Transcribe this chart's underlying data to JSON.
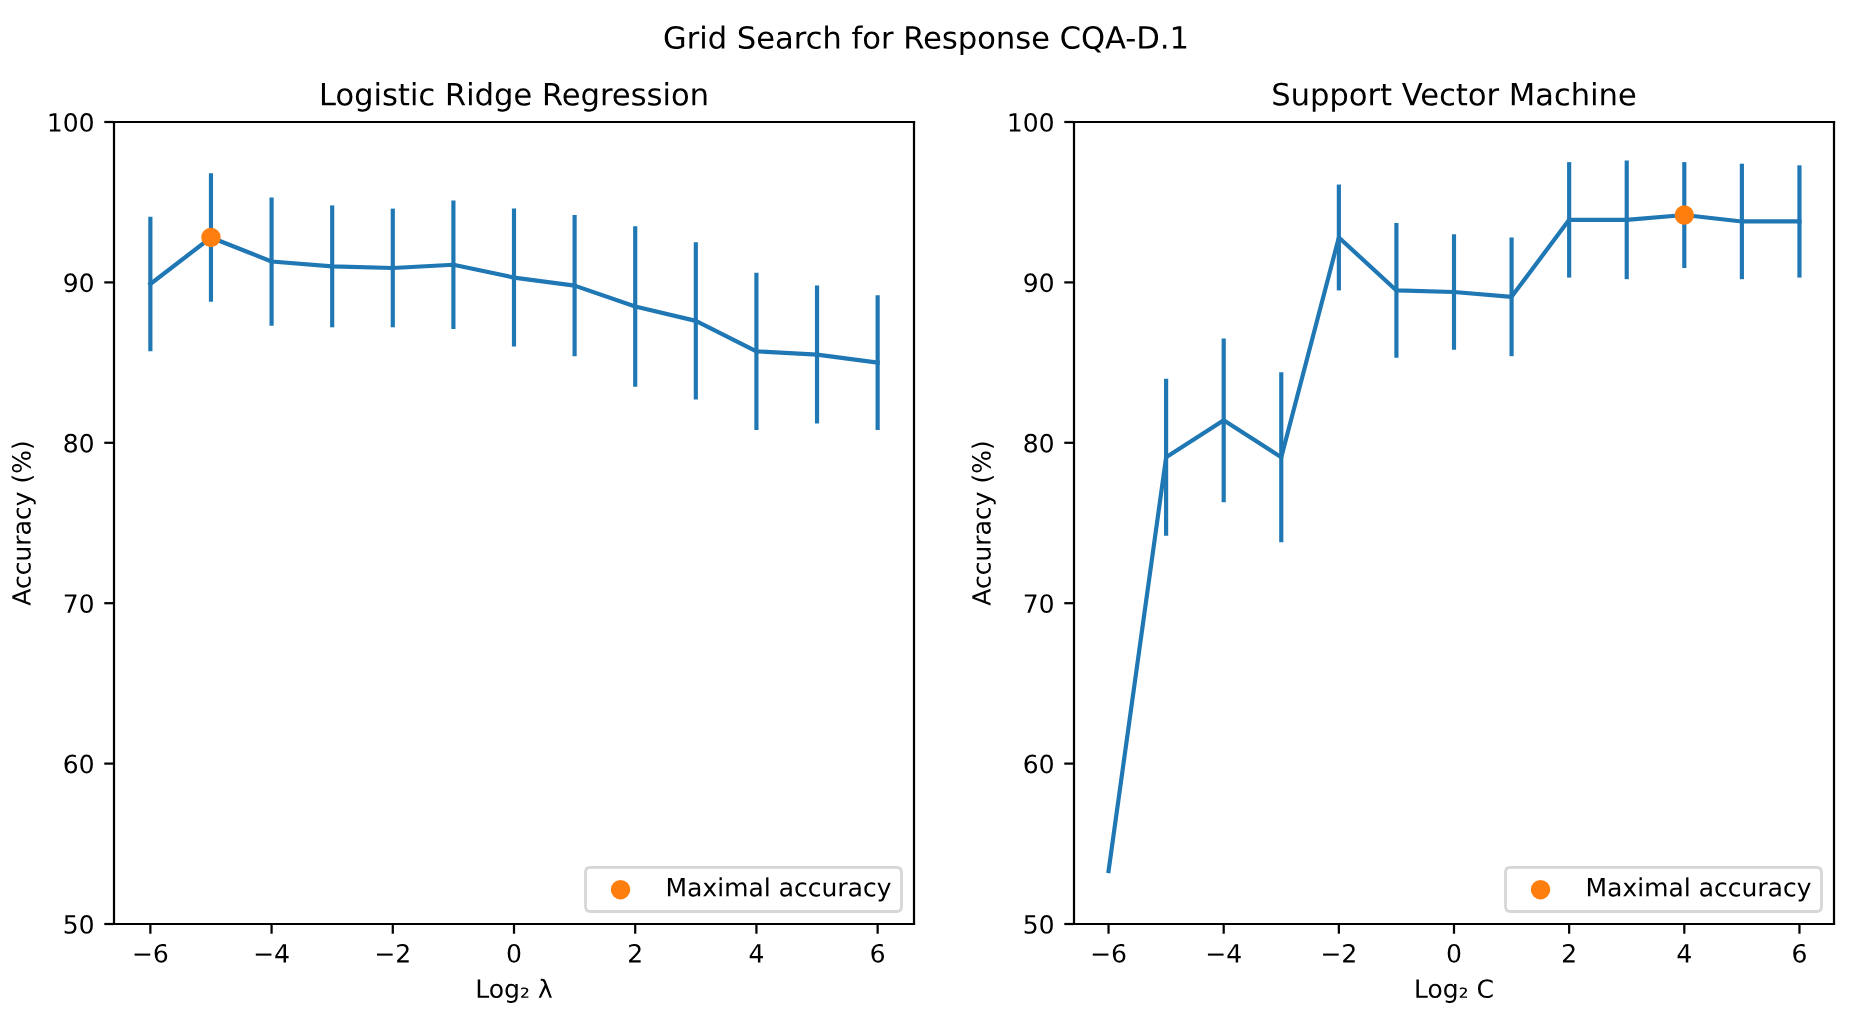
{
  "chart_data": [
    {
      "type": "line",
      "title": "Logistic Ridge Regression",
      "annotations": [
        "Grid Search for Response CQA-D.1"
      ],
      "xlabel": "Log₂ λ",
      "ylabel": "Accuracy (%)",
      "xlim": [
        -6.6,
        6.6
      ],
      "xticks": [
        {
          "value": -6,
          "label": "−6"
        },
        {
          "value": -4,
          "label": "−4"
        },
        {
          "value": -2,
          "label": "−2"
        },
        0,
        2,
        4,
        6
      ],
      "ylim": [
        50,
        100
      ],
      "yticks": [
        50,
        60,
        70,
        80,
        90,
        100
      ],
      "grid": false,
      "legend": "bottom right",
      "series": [
        {
          "color": "#1f77b4",
          "x": [
            -6,
            -5,
            -4,
            -3,
            -2,
            -1,
            0,
            1,
            2,
            3,
            4,
            5,
            6
          ],
          "values": [
            89.9,
            92.8,
            91.3,
            91.0,
            90.9,
            91.1,
            90.3,
            89.8,
            88.5,
            87.6,
            85.7,
            85.5,
            85.0
          ],
          "errors": [
            4.2,
            4.0,
            4.0,
            3.8,
            3.7,
            4.0,
            4.3,
            4.4,
            5.0,
            4.9,
            4.9,
            4.3,
            4.2
          ]
        },
        {
          "type": "scatter",
          "name": "Maximal accuracy",
          "color": "#ff7f0e",
          "marker": "circle",
          "x": [
            -5
          ],
          "values": [
            92.8
          ]
        }
      ]
    },
    {
      "type": "line",
      "title": "Support Vector Machine",
      "xlabel": "Log₂ C",
      "ylabel": "Accuracy (%)",
      "xlim": [
        -6.6,
        6.6
      ],
      "xticks": [
        {
          "value": -6,
          "label": "−6"
        },
        {
          "value": -4,
          "label": "−4"
        },
        {
          "value": -2,
          "label": "−2"
        },
        0,
        2,
        4,
        6
      ],
      "ylim": [
        50,
        100
      ],
      "yticks": [
        50,
        60,
        70,
        80,
        90,
        100
      ],
      "grid": false,
      "legend": "bottom right",
      "series": [
        {
          "color": "#1f77b4",
          "x": [
            -6,
            -5,
            -4,
            -3,
            -2,
            -1,
            0,
            1,
            2,
            3,
            4,
            5,
            6
          ],
          "values": [
            53.3,
            79.1,
            81.4,
            79.1,
            92.8,
            89.5,
            89.4,
            89.1,
            93.9,
            93.9,
            94.2,
            93.8,
            93.8
          ],
          "errors": [
            null,
            4.9,
            5.1,
            5.3,
            3.3,
            4.2,
            3.6,
            3.7,
            3.6,
            3.7,
            3.3,
            3.6,
            3.5
          ]
        },
        {
          "type": "scatter",
          "name": "Maximal accuracy",
          "color": "#ff7f0e",
          "marker": "circle",
          "x": [
            4
          ],
          "values": [
            94.2
          ]
        }
      ]
    }
  ]
}
